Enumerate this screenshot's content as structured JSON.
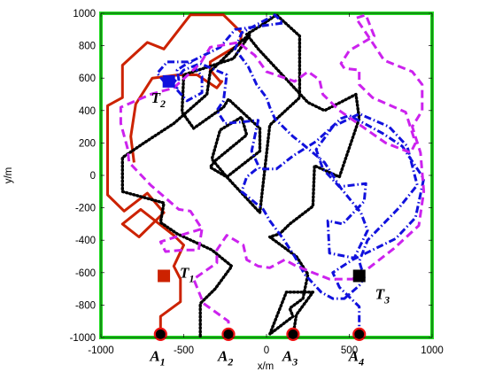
{
  "chart_data": {
    "type": "line",
    "title": "",
    "xlabel": "x/m",
    "ylabel": "y/m",
    "xlim": [
      -1000,
      1000
    ],
    "ylim": [
      -1000,
      1000
    ],
    "x_ticks": [
      -1000,
      -500,
      0,
      500,
      1000
    ],
    "y_ticks": [
      1000,
      800,
      600,
      400,
      200,
      0,
      -200,
      -400,
      -600,
      -800,
      -1000
    ],
    "x_tick_labels": [
      "-1000",
      "-500",
      "0",
      "500",
      "1000"
    ],
    "y_tick_labels": [
      "1000",
      "800",
      "600",
      "400",
      "200",
      "0",
      "-200",
      "-400",
      "-600",
      "-800",
      "-1000"
    ],
    "grid": false,
    "region": {
      "color": "#22dd22",
      "points": [
        [
          -1000,
          -1000
        ],
        [
          1000,
          -1000
        ],
        [
          1000,
          1000
        ],
        [
          -1000,
          1000
        ]
      ]
    },
    "series": [
      {
        "color": "#cc2200",
        "style": "solid",
        "points": [
          [
            -640,
            -990
          ],
          [
            -640,
            -870
          ],
          [
            -520,
            -780
          ],
          [
            -520,
            -640
          ],
          [
            -560,
            -560
          ],
          [
            -500,
            -430
          ],
          [
            -560,
            -370
          ],
          [
            -760,
            -210
          ],
          [
            -870,
            -300
          ],
          [
            -770,
            -380
          ],
          [
            -620,
            -230
          ],
          [
            -720,
            -110
          ],
          [
            -860,
            -220
          ],
          [
            -960,
            -120
          ],
          [
            -960,
            430
          ],
          [
            -870,
            480
          ],
          [
            -870,
            680
          ],
          [
            -720,
            820
          ],
          [
            -620,
            780
          ],
          [
            -460,
            990
          ],
          [
            -260,
            990
          ],
          [
            -150,
            880
          ],
          [
            -160,
            810
          ],
          [
            -260,
            750
          ],
          [
            -340,
            700
          ],
          [
            -340,
            650
          ],
          [
            -280,
            580
          ],
          [
            -270,
            580
          ],
          [
            -300,
            540
          ],
          [
            -420,
            620
          ],
          [
            -530,
            620
          ],
          [
            -690,
            600
          ],
          [
            -790,
            440
          ],
          [
            -820,
            240
          ],
          [
            -800,
            80
          ]
        ]
      },
      {
        "color": "#000000",
        "style": "dotted",
        "points": [
          [
            -400,
            -990
          ],
          [
            -400,
            -790
          ],
          [
            -310,
            -700
          ],
          [
            -210,
            -560
          ],
          [
            -330,
            -460
          ],
          [
            -540,
            -360
          ],
          [
            -640,
            -290
          ],
          [
            -620,
            -170
          ],
          [
            -870,
            -100
          ],
          [
            -870,
            110
          ],
          [
            -740,
            200
          ],
          [
            -560,
            320
          ],
          [
            -360,
            500
          ],
          [
            -340,
            640
          ],
          [
            -150,
            830
          ],
          [
            -100,
            870
          ],
          [
            -200,
            720
          ],
          [
            -500,
            620
          ],
          [
            -510,
            390
          ],
          [
            -440,
            290
          ],
          [
            -260,
            420
          ],
          [
            -230,
            470
          ],
          [
            -40,
            290
          ],
          [
            -40,
            150
          ],
          [
            -240,
            -10
          ],
          [
            -330,
            100
          ],
          [
            -280,
            280
          ],
          [
            -150,
            360
          ],
          [
            -120,
            250
          ],
          [
            -310,
            90
          ],
          [
            -340,
            50
          ],
          [
            -240,
            -10
          ],
          [
            -40,
            -230
          ],
          [
            20,
            310
          ],
          [
            200,
            480
          ],
          [
            200,
            860
          ],
          [
            60,
            990
          ],
          [
            -40,
            920
          ],
          [
            -120,
            870
          ],
          [
            -50,
            780
          ],
          [
            250,
            450
          ],
          [
            350,
            400
          ],
          [
            540,
            500
          ],
          [
            560,
            350
          ],
          [
            440,
            -10
          ],
          [
            290,
            60
          ],
          [
            280,
            -190
          ],
          [
            140,
            -300
          ],
          [
            80,
            -360
          ],
          [
            20,
            -380
          ],
          [
            180,
            -500
          ],
          [
            250,
            -610
          ],
          [
            220,
            -760
          ],
          [
            140,
            -820
          ],
          [
            160,
            -870
          ],
          [
            20,
            -980
          ],
          [
            120,
            -720
          ],
          [
            280,
            -720
          ],
          [
            180,
            -860
          ],
          [
            160,
            -990
          ]
        ]
      },
      {
        "color": "#1111dd",
        "style": "dashdot",
        "points": [
          [
            560,
            -990
          ],
          [
            560,
            -810
          ],
          [
            440,
            -690
          ],
          [
            400,
            -600
          ],
          [
            520,
            -520
          ],
          [
            780,
            -390
          ],
          [
            900,
            -260
          ],
          [
            950,
            -20
          ],
          [
            820,
            180
          ],
          [
            700,
            260
          ],
          [
            500,
            370
          ],
          [
            450,
            350
          ],
          [
            300,
            210
          ],
          [
            160,
            120
          ],
          [
            60,
            40
          ],
          [
            -40,
            40
          ],
          [
            -90,
            150
          ],
          [
            -50,
            340
          ],
          [
            -250,
            320
          ],
          [
            -300,
            400
          ],
          [
            -260,
            460
          ],
          [
            -240,
            620
          ],
          [
            -400,
            690
          ],
          [
            -500,
            650
          ],
          [
            -570,
            560
          ],
          [
            -480,
            460
          ],
          [
            -390,
            510
          ],
          [
            -390,
            610
          ],
          [
            -460,
            700
          ],
          [
            -600,
            700
          ],
          [
            -660,
            630
          ],
          [
            -620,
            580
          ],
          [
            -540,
            540
          ],
          [
            -530,
            590
          ],
          [
            -540,
            650
          ],
          [
            -480,
            690
          ],
          [
            -280,
            790
          ],
          [
            -190,
            900
          ],
          [
            100,
            940
          ],
          [
            50,
            990
          ],
          [
            -150,
            880
          ],
          [
            -190,
            780
          ],
          [
            -110,
            670
          ],
          [
            -60,
            560
          ],
          [
            0,
            480
          ],
          [
            20,
            420
          ],
          [
            50,
            350
          ],
          [
            160,
            240
          ],
          [
            210,
            200
          ],
          [
            350,
            80
          ],
          [
            450,
            -80
          ],
          [
            570,
            -230
          ],
          [
            610,
            -340
          ],
          [
            530,
            -510
          ],
          [
            380,
            -480
          ],
          [
            370,
            -280
          ],
          [
            460,
            -300
          ],
          [
            590,
            -160
          ],
          [
            600,
            -50
          ],
          [
            440,
            -70
          ],
          [
            340,
            40
          ],
          [
            300,
            160
          ],
          [
            400,
            300
          ],
          [
            560,
            380
          ],
          [
            740,
            300
          ],
          [
            850,
            180
          ],
          [
            910,
            -60
          ],
          [
            800,
            -200
          ],
          [
            610,
            -400
          ],
          [
            560,
            -530
          ],
          [
            590,
            -630
          ],
          [
            560,
            -680
          ],
          [
            470,
            -760
          ],
          [
            400,
            -760
          ],
          [
            330,
            -720
          ],
          [
            230,
            -610
          ],
          [
            170,
            -500
          ],
          [
            100,
            -390
          ],
          [
            20,
            -280
          ],
          [
            -20,
            -210
          ],
          [
            -150,
            -100
          ],
          [
            -120,
            -10
          ],
          [
            -60,
            40
          ]
        ]
      },
      {
        "color": "#cc22ee",
        "style": "dashed",
        "points": [
          [
            -230,
            -990
          ],
          [
            -230,
            -900
          ],
          [
            -380,
            -790
          ],
          [
            -440,
            -640
          ],
          [
            -300,
            -540
          ],
          [
            -300,
            -460
          ],
          [
            -240,
            -370
          ],
          [
            -140,
            -430
          ],
          [
            -120,
            -520
          ],
          [
            -50,
            -560
          ],
          [
            20,
            -570
          ],
          [
            110,
            -520
          ],
          [
            180,
            -560
          ],
          [
            380,
            -640
          ],
          [
            520,
            -640
          ],
          [
            620,
            -570
          ],
          [
            770,
            -450
          ],
          [
            920,
            -310
          ],
          [
            950,
            -100
          ],
          [
            930,
            140
          ],
          [
            880,
            300
          ],
          [
            940,
            400
          ],
          [
            940,
            560
          ],
          [
            880,
            640
          ],
          [
            710,
            710
          ],
          [
            620,
            850
          ],
          [
            540,
            970
          ],
          [
            600,
            990
          ],
          [
            650,
            860
          ],
          [
            500,
            770
          ],
          [
            450,
            690
          ],
          [
            470,
            660
          ],
          [
            560,
            650
          ],
          [
            560,
            560
          ],
          [
            640,
            480
          ],
          [
            840,
            390
          ],
          [
            900,
            200
          ],
          [
            870,
            140
          ],
          [
            720,
            200
          ],
          [
            440,
            400
          ],
          [
            340,
            500
          ],
          [
            320,
            590
          ],
          [
            250,
            640
          ],
          [
            170,
            580
          ],
          [
            0,
            640
          ],
          [
            -70,
            740
          ],
          [
            -170,
            820
          ],
          [
            -340,
            790
          ],
          [
            -400,
            690
          ],
          [
            -560,
            540
          ],
          [
            -700,
            500
          ],
          [
            -880,
            420
          ],
          [
            -880,
            320
          ],
          [
            -840,
            170
          ],
          [
            -830,
            80
          ],
          [
            -700,
            -60
          ],
          [
            -530,
            -210
          ],
          [
            -460,
            -220
          ],
          [
            -390,
            -330
          ],
          [
            -490,
            -360
          ],
          [
            -640,
            -410
          ],
          [
            -610,
            -470
          ],
          [
            -500,
            -460
          ],
          [
            -410,
            -460
          ],
          [
            -390,
            -330
          ]
        ]
      }
    ],
    "targets": [
      {
        "label": "T",
        "sub": "1",
        "x": -620,
        "y": -620,
        "color": "#cc2200"
      },
      {
        "label": "T",
        "sub": "2",
        "x": -590,
        "y": 580,
        "color": "#1111dd"
      },
      {
        "label": "T",
        "sub": "3",
        "x": 560,
        "y": -620,
        "color": "#000000"
      }
    ],
    "agents": [
      {
        "label": "A",
        "sub": "1",
        "x": -640,
        "y": -980
      },
      {
        "label": "A",
        "sub": "2",
        "x": -230,
        "y": -980
      },
      {
        "label": "A",
        "sub": "3",
        "x": 160,
        "y": -980
      },
      {
        "label": "A",
        "sub": "4",
        "x": 560,
        "y": -980
      }
    ]
  }
}
